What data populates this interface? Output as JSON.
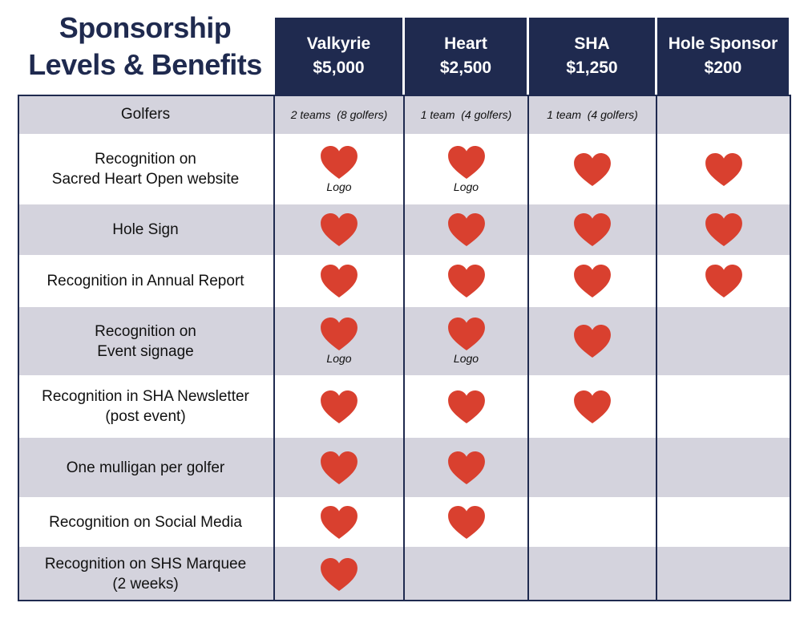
{
  "title": [
    "Sponsorship",
    "Levels & Benefits"
  ],
  "columns": [
    {
      "name": "Valkyrie",
      "price": "$5,000"
    },
    {
      "name": "Heart",
      "price": "$2,500"
    },
    {
      "name": "SHA",
      "price": "$1,250"
    },
    {
      "name": "Hole Sponsor",
      "price": "$200"
    }
  ],
  "rows": [
    {
      "label": [
        "Golfers"
      ],
      "cells": [
        {
          "heart": false,
          "text": "2 teams  (8 golfers)"
        },
        {
          "heart": false,
          "text": "1 team  (4 golfers)"
        },
        {
          "heart": false,
          "text": "1 team  (4 golfers)"
        },
        {
          "heart": false
        }
      ]
    },
    {
      "label": [
        "Recognition on",
        "Sacred Heart Open website"
      ],
      "cells": [
        {
          "heart": true,
          "text": "Logo"
        },
        {
          "heart": true,
          "text": "Logo"
        },
        {
          "heart": true
        },
        {
          "heart": true
        }
      ]
    },
    {
      "label": [
        "Hole Sign"
      ],
      "cells": [
        {
          "heart": true
        },
        {
          "heart": true
        },
        {
          "heart": true
        },
        {
          "heart": true
        }
      ]
    },
    {
      "label": [
        "Recognition in Annual Report"
      ],
      "cells": [
        {
          "heart": true
        },
        {
          "heart": true
        },
        {
          "heart": true
        },
        {
          "heart": true
        }
      ]
    },
    {
      "label": [
        "Recognition on",
        "Event signage"
      ],
      "cells": [
        {
          "heart": true,
          "text": "Logo"
        },
        {
          "heart": true,
          "text": "Logo"
        },
        {
          "heart": true
        },
        {
          "heart": false
        }
      ]
    },
    {
      "label": [
        "Recognition in SHA Newsletter",
        "(post event)"
      ],
      "cells": [
        {
          "heart": true
        },
        {
          "heart": true
        },
        {
          "heart": true
        },
        {
          "heart": false
        }
      ]
    },
    {
      "label": [
        "One mulligan per golfer"
      ],
      "cells": [
        {
          "heart": true
        },
        {
          "heart": true
        },
        {
          "heart": false
        },
        {
          "heart": false
        }
      ]
    },
    {
      "label": [
        "Recognition on Social Media"
      ],
      "cells": [
        {
          "heart": true
        },
        {
          "heart": true
        },
        {
          "heart": false
        },
        {
          "heart": false
        }
      ]
    },
    {
      "label": [
        "Recognition on SHS Marquee",
        "(2 weeks)"
      ],
      "cells": [
        {
          "heart": true
        },
        {
          "heart": false
        },
        {
          "heart": false
        },
        {
          "heart": false
        }
      ]
    }
  ]
}
